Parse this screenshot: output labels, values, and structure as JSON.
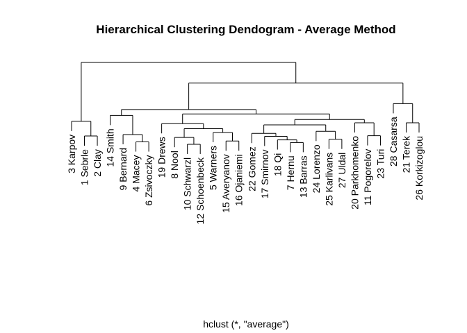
{
  "chart_data": {
    "type": "dendrogram",
    "title": "Hierarchical Clustering Dendogram - Average Method",
    "xlabel": "hclust (*, \"average\")",
    "ylabel": "",
    "leaves": [
      "3 Karpov",
      "1 Sebrle",
      "2 Clay",
      "14 Smith",
      "9 Bernard",
      "4 Macey",
      "6 Zsivoczky",
      "19 Drews",
      "8 Nool",
      "10 Schwarzl",
      "12 Schoenbeck",
      "5 Warners",
      "15 Averyanov",
      "16 Ojaniemi",
      "22 Gomez",
      "17 Smirnov",
      "18 Qi",
      "7 Hernu",
      "13 Barras",
      "24 Lorenzo",
      "25 Karlivans",
      "27 Uldal",
      "20 Parkhomenko",
      "11 Pogorelov",
      "23 Turi",
      "28 Casarsa",
      "21 Terek",
      "26 Korkizoglou"
    ],
    "merges": [
      {
        "left": "L1",
        "right": "L2",
        "height": 8,
        "id": "A"
      },
      {
        "left": "L0",
        "right": "A",
        "height": 13,
        "id": "B"
      },
      {
        "left": "L5",
        "right": "L6",
        "height": 6,
        "id": "C"
      },
      {
        "left": "L4",
        "right": "C",
        "height": 8.5,
        "id": "D"
      },
      {
        "left": "L3",
        "right": "D",
        "height": 15,
        "id": "E"
      },
      {
        "left": "L9",
        "right": "L10",
        "height": 5.2,
        "id": "F"
      },
      {
        "left": "L8",
        "right": "F",
        "height": 7.5,
        "id": "G"
      },
      {
        "left": "L12",
        "right": "L13",
        "height": 6.3,
        "id": "H"
      },
      {
        "left": "L11",
        "right": "H",
        "height": 9.2,
        "id": "I"
      },
      {
        "left": "G",
        "right": "I",
        "height": 10.5,
        "id": "J"
      },
      {
        "left": "L7",
        "right": "J",
        "height": 12.2,
        "id": "K"
      },
      {
        "left": "L17",
        "right": "L18",
        "height": 5.8,
        "id": "M"
      },
      {
        "left": "L16",
        "right": "M",
        "height": 6.7,
        "id": "N"
      },
      {
        "left": "L15",
        "right": "N",
        "height": 7.9,
        "id": "O"
      },
      {
        "left": "L14",
        "right": "O",
        "height": 8.9,
        "id": "P"
      },
      {
        "left": "L20",
        "right": "L21",
        "height": 6.9,
        "id": "Q"
      },
      {
        "left": "L19",
        "right": "Q",
        "height": 9.6,
        "id": "R"
      },
      {
        "left": "P",
        "right": "R",
        "height": 11.8,
        "id": "S"
      },
      {
        "left": "L23",
        "right": "L24",
        "height": 8.1,
        "id": "T"
      },
      {
        "left": "L22",
        "right": "T",
        "height": 12.5,
        "id": "U"
      },
      {
        "left": "S",
        "right": "U",
        "height": 13.6,
        "id": "V"
      },
      {
        "left": "K",
        "right": "V",
        "height": 15.5,
        "id": "W"
      },
      {
        "left": "E",
        "right": "W",
        "height": 17,
        "id": "X"
      },
      {
        "left": "L26",
        "right": "L27",
        "height": 12.5,
        "id": "Y"
      },
      {
        "left": "L25",
        "right": "Y",
        "height": 19,
        "id": "Z"
      },
      {
        "left": "X",
        "right": "Z",
        "height": 26,
        "id": "AA"
      },
      {
        "left": "B",
        "right": "AA",
        "height": 33,
        "id": "AB"
      }
    ],
    "ylim": [
      0,
      33
    ],
    "grid": false,
    "legend": "none"
  }
}
